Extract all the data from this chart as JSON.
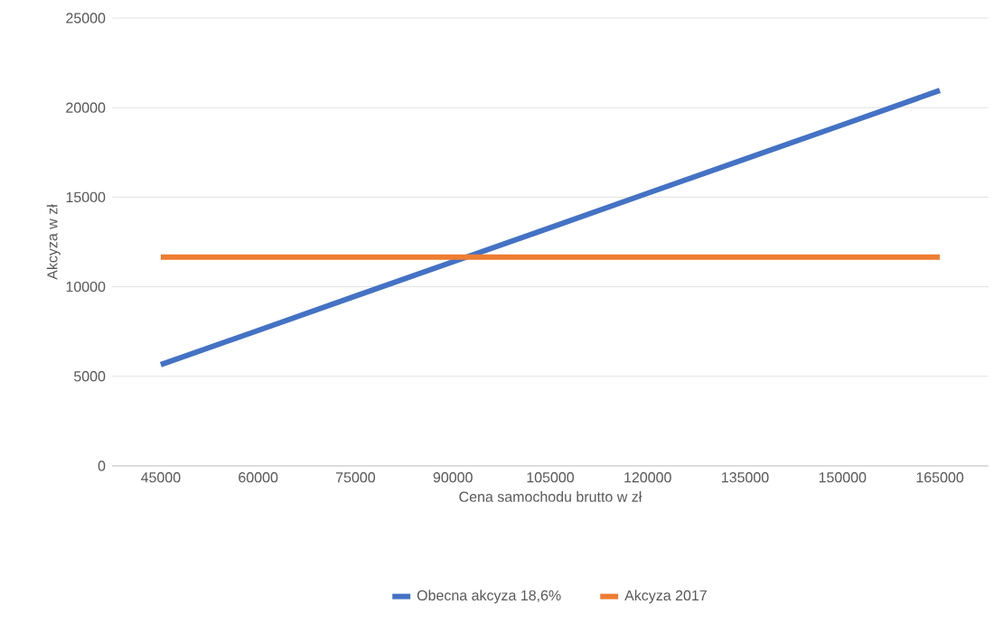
{
  "chart_data": {
    "type": "line",
    "xlabel": "Cena samochodu brutto w zł",
    "ylabel": "Akcyza w zł",
    "categories": [
      "45000",
      "60000",
      "75000",
      "90000",
      "105000",
      "120000",
      "135000",
      "150000",
      "165000"
    ],
    "series": [
      {
        "name": "Obecna akcyza 18,6%",
        "color": "#4472c4",
        "values": [
          5650,
          7560,
          9480,
          11390,
          13300,
          15220,
          17130,
          19040,
          20960
        ]
      },
      {
        "name": "Akcyza 2017",
        "color": "#ed7d31",
        "values": [
          11650,
          11650,
          11650,
          11650,
          11650,
          11650,
          11650,
          11650,
          11650
        ]
      }
    ],
    "ylim": [
      0,
      25000
    ],
    "yticks": [
      0,
      5000,
      10000,
      15000,
      20000,
      25000
    ],
    "grid": "y",
    "legend": "bottom",
    "marker": "none",
    "line_style": "solid"
  }
}
